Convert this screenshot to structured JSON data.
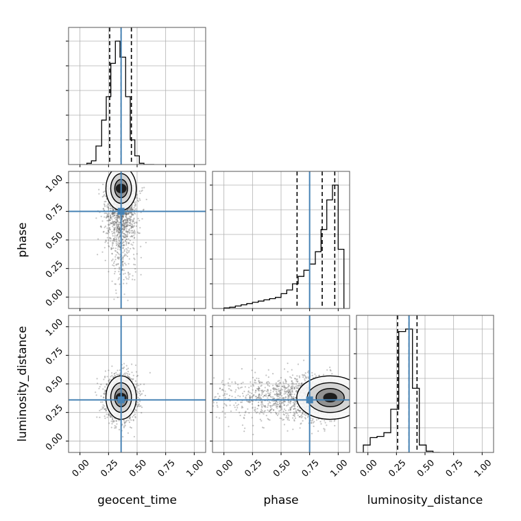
{
  "chart_data": {
    "type": "corner",
    "parameters": [
      "geocent_time",
      "phase",
      "luminosity_distance"
    ],
    "axis_range": [
      -0.1,
      1.1
    ],
    "ticks": [
      0.0,
      0.25,
      0.5,
      0.75,
      1.0
    ],
    "tick_labels": [
      "0.00",
      "0.25",
      "0.50",
      "0.75",
      "1.00"
    ],
    "x_labels": [
      "geocent_time",
      "phase",
      "luminosity_distance"
    ],
    "y_labels": [
      "",
      "phase",
      "luminosity_distance"
    ],
    "grid": true,
    "truth_color": "#4682b4",
    "truths": {
      "geocent_time": 0.36,
      "phase": 0.75,
      "luminosity_distance": 0.36
    },
    "histograms": [
      {
        "parameter": "geocent_time",
        "bin_edges": [
          0.06,
          0.1,
          0.14,
          0.19,
          0.23,
          0.27,
          0.31,
          0.35,
          0.4,
          0.44,
          0.48,
          0.52,
          0.56,
          0.61,
          0.65
        ],
        "counts": [
          0.01,
          0.03,
          0.15,
          0.36,
          0.55,
          0.82,
          1.0,
          0.87,
          0.55,
          0.2,
          0.07,
          0.01,
          0.0,
          0.0
        ],
        "quantile_lines": [
          0.26,
          0.36,
          0.45
        ]
      },
      {
        "parameter": "phase",
        "bin_edges": [
          0.0,
          0.05,
          0.1,
          0.15,
          0.2,
          0.25,
          0.3,
          0.35,
          0.4,
          0.45,
          0.5,
          0.55,
          0.6,
          0.65,
          0.7,
          0.75,
          0.8,
          0.85,
          0.9,
          0.95,
          1.0,
          1.05
        ],
        "counts": [
          0.005,
          0.01,
          0.02,
          0.03,
          0.04,
          0.05,
          0.06,
          0.07,
          0.08,
          0.09,
          0.12,
          0.15,
          0.2,
          0.26,
          0.31,
          0.36,
          0.46,
          0.64,
          0.88,
          1.0,
          0.48
        ],
        "quantile_lines": [
          0.64,
          0.86,
          0.97
        ]
      },
      {
        "parameter": "luminosity_distance",
        "bin_edges": [
          -0.04,
          0.02,
          0.08,
          0.14,
          0.2,
          0.27,
          0.33,
          0.39,
          0.45,
          0.51,
          0.57,
          0.63
        ],
        "counts": [
          0.06,
          0.12,
          0.13,
          0.16,
          0.35,
          0.98,
          1.0,
          0.52,
          0.06,
          0.01,
          0.0
        ],
        "quantile_lines": [
          0.26,
          0.36,
          0.43
        ]
      }
    ],
    "pairs": [
      {
        "x": "geocent_time",
        "y": "phase",
        "peak": [
          0.36,
          0.95
        ],
        "spread": [
          0.07,
          0.2
        ]
      },
      {
        "x": "geocent_time",
        "y": "luminosity_distance",
        "peak": [
          0.36,
          0.38
        ],
        "spread": [
          0.07,
          0.1
        ]
      },
      {
        "x": "phase",
        "y": "luminosity_distance",
        "peak": [
          0.93,
          0.38
        ],
        "spread": [
          0.28,
          0.1
        ]
      }
    ]
  }
}
